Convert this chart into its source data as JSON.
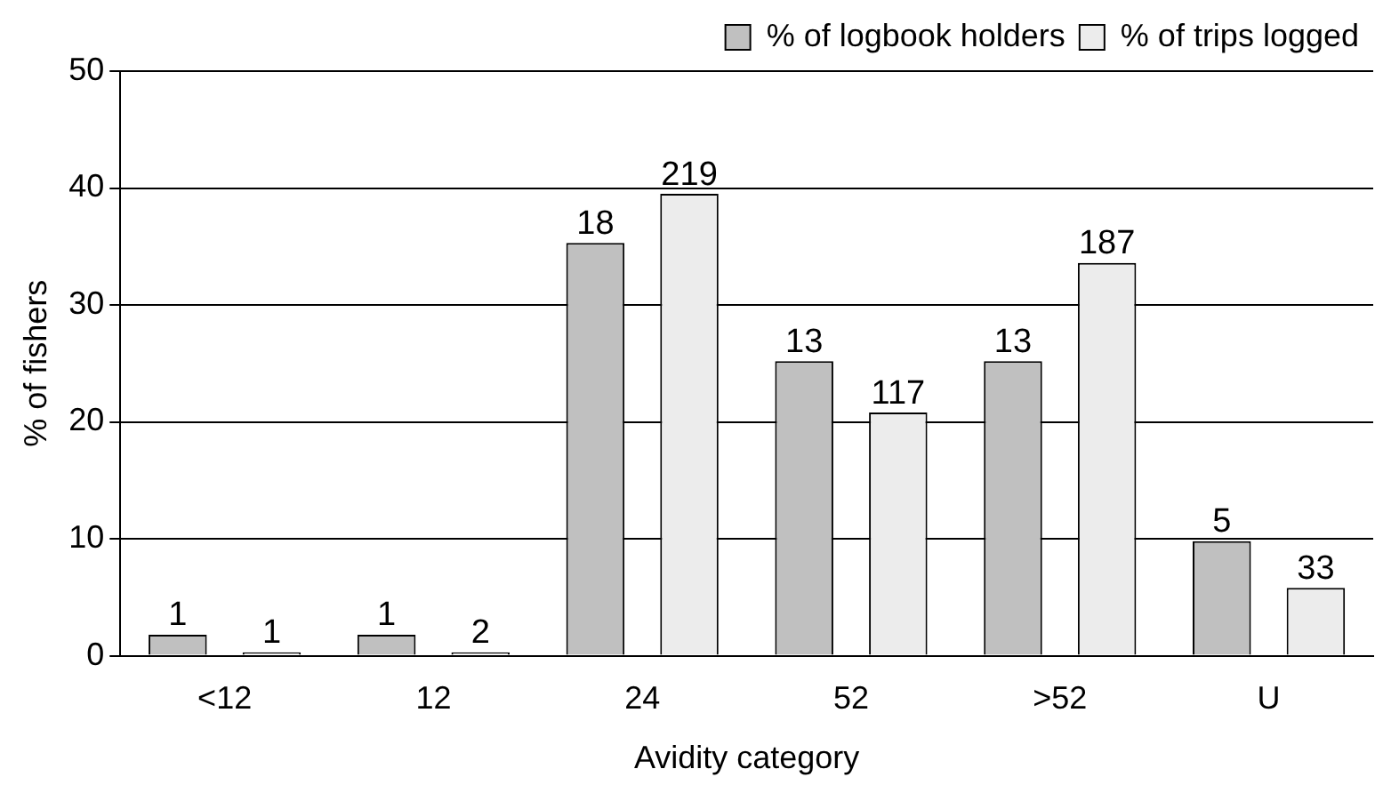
{
  "chart_data": {
    "type": "bar",
    "xlabel": "Avidity category",
    "ylabel": "% of fishers",
    "categories": [
      "<12",
      "12",
      "24",
      "52",
      ">52",
      "U"
    ],
    "series": [
      {
        "name": "% of logbook holders",
        "color": "#c0c0c0",
        "values": [
          1.8,
          1.8,
          35.3,
          25.2,
          25.2,
          9.8
        ]
      },
      {
        "name": "% of trips logged",
        "color": "#ececec",
        "values": [
          0.3,
          0.3,
          39.5,
          20.8,
          33.6,
          5.8
        ]
      }
    ],
    "annotations": [
      "1",
      "1",
      "1",
      "2",
      "18",
      "219",
      "13",
      "117",
      "13",
      "187",
      "5",
      "33"
    ],
    "ylim": [
      0,
      50
    ],
    "yticks": [
      0,
      10,
      20,
      30,
      40,
      50
    ],
    "grid": "y",
    "legend": "top right"
  }
}
